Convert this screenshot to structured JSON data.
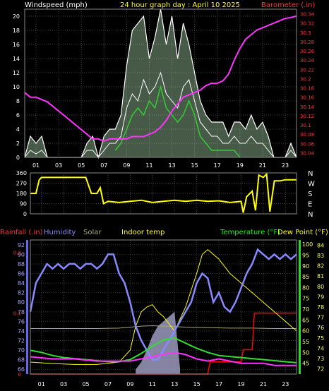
{
  "colors": {
    "wind": "#ffffff",
    "wind_avg": "#33cc33",
    "wind_gust_fill": "#ccffcc",
    "baro": "#ff33ff",
    "wind_dir": "#ffff00",
    "rain_acc": "#ff0000",
    "humidity": "#8888ff",
    "solar": "#aaaa77",
    "indoor": "#ffff00",
    "temp": "#33dd33",
    "dew": "#ff33ff",
    "temp_label": "#00ff00",
    "dew_label": "#ffff00"
  },
  "chart_data": [
    {
      "type": "line",
      "title": "24 hour graph day : April 10 2025",
      "left_label": "Windspeed (mph)",
      "right_label": "Barometer (.in)",
      "x_ticks": [
        "01",
        "03",
        "05",
        "07",
        "09",
        "11",
        "13",
        "15",
        "17",
        "19",
        "21",
        "23"
      ],
      "y_left_ticks": [
        "0",
        "2",
        "4",
        "6",
        "8",
        "10",
        "12",
        "14",
        "16",
        "18",
        "20"
      ],
      "y_right_ticks": [
        "30.04",
        "30.06",
        "30.08",
        "30.1",
        "30.12",
        "30.14",
        "30.16",
        "30.18",
        "30.2",
        "30.22",
        "30.24",
        "30.26",
        "30.28",
        "30.3",
        "30.32",
        "30.34"
      ],
      "xlim": [
        0,
        24
      ],
      "ylim_left": [
        0,
        21
      ],
      "ylim_right": [
        30.03,
        30.35
      ],
      "series": [
        {
          "key": "gust_envelope",
          "x": [
            0,
            0.5,
            1,
            1.5,
            2,
            3,
            4,
            5,
            5.5,
            6,
            6.5,
            7,
            7.5,
            8,
            8.5,
            9,
            9.5,
            10,
            10.5,
            11,
            11.5,
            12,
            12.5,
            13,
            13.5,
            14,
            14.5,
            15,
            15.5,
            16,
            16.5,
            17,
            17.5,
            18,
            18.5,
            19,
            19.5,
            20,
            20.5,
            21,
            21.5,
            22,
            23,
            23.5,
            24
          ],
          "y": [
            0,
            3,
            2,
            3,
            0,
            0,
            0,
            0,
            2,
            3,
            0,
            3,
            4,
            4,
            6,
            13,
            18,
            19,
            20,
            14,
            17,
            21,
            16,
            20,
            14,
            19,
            16,
            12,
            8,
            6,
            5,
            5,
            5,
            3,
            5,
            5,
            4,
            6,
            4,
            5,
            3,
            0,
            0,
            2,
            0
          ]
        },
        {
          "key": "wind_speed",
          "x": [
            0,
            0.5,
            1,
            1.5,
            2,
            3,
            4,
            5,
            5.5,
            6,
            6.5,
            7,
            7.5,
            8,
            8.5,
            9,
            9.5,
            10,
            10.5,
            11,
            11.5,
            12,
            12.5,
            13,
            13.5,
            14,
            14.5,
            15,
            15.5,
            16,
            16.5,
            17,
            17.5,
            18,
            18.5,
            19,
            19.5,
            20,
            20.5,
            21,
            21.5,
            22,
            23,
            23.5,
            24
          ],
          "y": [
            0,
            1,
            0.5,
            1,
            0,
            0,
            0,
            0,
            1,
            1,
            0,
            1,
            2,
            2,
            3,
            7,
            9,
            8,
            11,
            9,
            10,
            12,
            9,
            8,
            7,
            10,
            11,
            8,
            5,
            4,
            3,
            3,
            2,
            2,
            3,
            2,
            2,
            3,
            2,
            2,
            1,
            0,
            0,
            1,
            0
          ]
        },
        {
          "key": "wind_avg",
          "x": [
            8,
            8.5,
            9,
            9.5,
            10,
            10.5,
            11,
            11.5,
            12,
            12.5,
            13,
            13.5,
            14,
            14.5,
            15,
            15.5,
            16,
            16.5,
            17,
            17.5,
            18,
            18.5,
            19
          ],
          "y": [
            1,
            2,
            4,
            6,
            7,
            6,
            8,
            7,
            10,
            7,
            6,
            5,
            6,
            8,
            6,
            3,
            2,
            1,
            1,
            1,
            1,
            1,
            0
          ]
        },
        {
          "key": "barometer",
          "x": [
            0,
            0.5,
            1,
            2,
            3,
            4,
            5,
            5.5,
            6,
            6.5,
            7,
            7.5,
            8,
            8.5,
            9,
            9.5,
            10,
            10.5,
            11,
            11.5,
            12,
            12.5,
            13,
            13.5,
            14,
            14.5,
            15,
            15.5,
            16,
            16.5,
            17,
            17.5,
            18,
            18.5,
            19,
            19.5,
            20,
            20.5,
            21,
            21.5,
            22,
            22.5,
            23,
            23.5,
            24
          ],
          "y": [
            30.17,
            30.16,
            30.16,
            30.15,
            30.13,
            30.11,
            30.09,
            30.08,
            30.07,
            30.07,
            30.065,
            30.07,
            30.07,
            30.07,
            30.07,
            30.075,
            30.075,
            30.075,
            30.08,
            30.085,
            30.095,
            30.11,
            30.13,
            30.145,
            30.16,
            30.165,
            30.17,
            30.175,
            30.185,
            30.19,
            30.19,
            30.195,
            30.21,
            30.24,
            30.265,
            30.285,
            30.295,
            30.305,
            30.31,
            30.315,
            30.32,
            30.325,
            30.33,
            30.332,
            30.335
          ]
        }
      ]
    },
    {
      "type": "line",
      "title": "",
      "y_left_ticks": [
        "360",
        "270",
        "180",
        "90",
        "0"
      ],
      "y_right_labels": [
        "N",
        "W",
        "S",
        "E",
        "N"
      ],
      "ylim": [
        0,
        360
      ],
      "series": [
        {
          "key": "wind_direction",
          "x": [
            0,
            0.5,
            0.8,
            1,
            2,
            3,
            4,
            4.5,
            5,
            5.5,
            6,
            6.3,
            6.6,
            7,
            8,
            9,
            10,
            11,
            12,
            13,
            14,
            15,
            16,
            17,
            18,
            19,
            19.2,
            19.5,
            20,
            20.3,
            20.6,
            21,
            21.3,
            21.6,
            22,
            22.5,
            23,
            23.5,
            24
          ],
          "y": [
            180,
            180,
            300,
            320,
            320,
            320,
            320,
            320,
            320,
            180,
            180,
            230,
            90,
            110,
            100,
            110,
            120,
            100,
            110,
            120,
            110,
            120,
            110,
            115,
            100,
            110,
            10,
            150,
            200,
            30,
            340,
            320,
            350,
            20,
            290,
            290,
            300,
            300,
            300
          ]
        }
      ]
    },
    {
      "type": "line",
      "title": "",
      "labels": {
        "rainfall": "Rainfall (.in)",
        "humidity": "Humidity",
        "solar": "Solar",
        "indoor": "Indoor temp",
        "temperature": "Temperature (°F)",
        "dew": "Dew Point (°F)"
      },
      "x_ticks": [
        "01",
        "03",
        "05",
        "07",
        "09",
        "11",
        "13",
        "15",
        "17",
        "19",
        "21",
        "23"
      ],
      "humidity_ticks": [
        "92",
        "90",
        "88",
        "86",
        "84",
        "82",
        "80",
        "78",
        "76",
        "74",
        "72",
        "70",
        "68",
        "66"
      ],
      "temp_ticks": [
        "84",
        "83",
        "82",
        "81",
        "80",
        "79",
        "78",
        "77",
        "76",
        "75",
        "74",
        "73",
        "72"
      ],
      "dew_ticks": [
        "100",
        "95",
        "90",
        "85",
        "80",
        "75",
        "70",
        "65",
        "60",
        "55",
        "50",
        "45"
      ],
      "rain_ticks": [
        "0.2",
        "0.1",
        "0"
      ],
      "xlim": [
        0,
        24
      ],
      "hum_lim": [
        65,
        93
      ],
      "temp_lim": [
        71.5,
        84.5
      ],
      "dew_lim": [
        40,
        102
      ],
      "rain_lim": [
        0,
        0.22
      ],
      "series": [
        {
          "key": "humidity",
          "x": [
            0,
            0.5,
            1,
            1.5,
            2,
            2.5,
            3,
            3.5,
            4,
            4.5,
            5,
            5.5,
            6,
            6.5,
            7,
            7.5,
            8,
            8.5,
            9,
            9.5,
            10,
            10.5,
            11,
            11.5,
            12,
            12.5,
            13,
            13.5,
            14,
            14.5,
            15,
            15.5,
            16,
            16.5,
            17,
            17.5,
            18,
            18.5,
            19,
            19.5,
            20,
            20.5,
            21,
            21.5,
            22,
            22.5,
            23,
            23.5,
            24
          ],
          "y": [
            78,
            84,
            86,
            88,
            87,
            88,
            87,
            88,
            88,
            87,
            88,
            88,
            87,
            88,
            90,
            90,
            86,
            84,
            80,
            75,
            72,
            70,
            68,
            68,
            70,
            72,
            74,
            76,
            78,
            80,
            84,
            86,
            85,
            80,
            82,
            79,
            78,
            80,
            83,
            86,
            88,
            91,
            90,
            89,
            90,
            89,
            90,
            89,
            90
          ]
        },
        {
          "key": "solar",
          "x": [
            0,
            3,
            6,
            8,
            9,
            10,
            11,
            12,
            13,
            14,
            16,
            18,
            20,
            22,
            24
          ],
          "y": [
            74.5,
            74.5,
            74.5,
            74.6,
            74.8,
            75.0,
            75.1,
            75.0,
            74.9,
            74.8,
            74.7,
            74.6,
            74.6,
            74.5,
            74.5
          ]
        },
        {
          "key": "solar_area",
          "x": [
            9.5,
            10,
            10.5,
            11,
            11.5,
            12,
            12.5,
            13,
            13.5
          ],
          "y": [
            66,
            67.5,
            70,
            73,
            75,
            76,
            77,
            78,
            66
          ]
        },
        {
          "key": "indoor",
          "x": [
            0,
            2,
            4,
            6,
            8,
            9,
            9.5,
            10,
            10.5,
            11,
            11.5,
            12,
            13,
            14,
            15,
            15.5,
            16,
            17,
            18,
            19,
            20,
            21,
            22,
            23,
            24
          ],
          "y": [
            67.5,
            67.2,
            67.0,
            67.0,
            67.5,
            70,
            75,
            78,
            79,
            79.5,
            78,
            77,
            74,
            79,
            86,
            90,
            91,
            89,
            86,
            84,
            82,
            80,
            78,
            76,
            74
          ]
        },
        {
          "key": "temperature",
          "x": [
            0,
            1,
            2,
            3,
            4,
            5,
            6,
            7,
            8,
            9,
            10,
            11,
            12,
            13,
            14,
            15,
            16,
            17,
            18,
            19,
            20,
            21,
            22,
            23,
            24
          ],
          "y": [
            73.8,
            73.6,
            73.3,
            73.1,
            73.0,
            72.9,
            72.8,
            72.7,
            72.7,
            72.9,
            73.5,
            74.2,
            74.8,
            75.0,
            74.5,
            74.0,
            73.6,
            73.3,
            73.2,
            73.1,
            73.0,
            72.9,
            72.8,
            72.7,
            72.6
          ]
        },
        {
          "key": "dew_point",
          "x": [
            0,
            2,
            4,
            6,
            8,
            9,
            10,
            11,
            12,
            13,
            14,
            15,
            16,
            17,
            18,
            19,
            20,
            21,
            22,
            23,
            24
          ],
          "y": [
            48,
            47,
            47,
            46,
            46,
            46,
            47,
            48,
            49,
            50,
            49,
            47,
            46,
            47,
            46,
            45,
            45,
            45,
            44,
            44,
            44
          ]
        },
        {
          "key": "rain",
          "x": [
            0,
            16,
            16.2,
            19,
            19.2,
            20,
            20.2,
            24
          ],
          "y": [
            0,
            0,
            0.02,
            0.02,
            0.04,
            0.04,
            0.1,
            0.1
          ]
        }
      ]
    }
  ]
}
